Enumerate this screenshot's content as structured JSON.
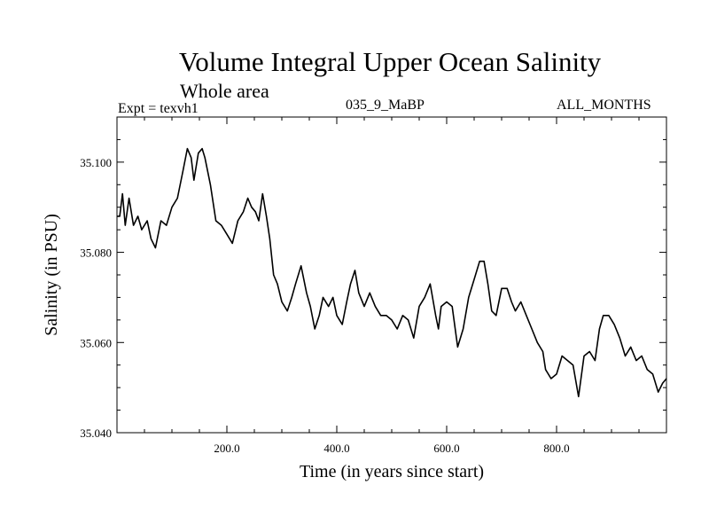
{
  "chart_data": {
    "type": "line",
    "title": "Volume Integral Upper Ocean Salinity",
    "subtitle": "Whole area",
    "expt_label": "Expt = texvh1",
    "run_label": "035_9_MaBP",
    "months_label": "ALL_MONTHS",
    "xlabel": "Time (in years since start)",
    "ylabel": "Salinity (in PSU)",
    "xlim": [
      0,
      1000
    ],
    "ylim": [
      35.04,
      35.11
    ],
    "x_ticks": [
      200,
      400,
      600,
      800
    ],
    "x_tick_labels": [
      "200.0",
      "400.0",
      "600.0",
      "800.0"
    ],
    "y_ticks": [
      35.04,
      35.06,
      35.08,
      35.1
    ],
    "y_tick_labels": [
      "35.040",
      "35.060",
      "35.080",
      "35.100"
    ],
    "series": [
      {
        "name": "salinity",
        "x": [
          0,
          5,
          10,
          15,
          22,
          30,
          38,
          45,
          55,
          62,
          70,
          80,
          90,
          100,
          110,
          120,
          128,
          135,
          140,
          148,
          155,
          160,
          170,
          180,
          190,
          200,
          210,
          220,
          230,
          238,
          245,
          252,
          258,
          265,
          272,
          278,
          285,
          292,
          300,
          310,
          318,
          325,
          335,
          345,
          352,
          360,
          368,
          375,
          385,
          393,
          400,
          410,
          418,
          425,
          433,
          440,
          450,
          460,
          470,
          480,
          490,
          500,
          510,
          520,
          530,
          540,
          550,
          560,
          570,
          580,
          585,
          590,
          600,
          610,
          620,
          630,
          640,
          650,
          660,
          668,
          675,
          682,
          690,
          700,
          710,
          718,
          725,
          735,
          745,
          755,
          765,
          775,
          780,
          790,
          800,
          810,
          820,
          830,
          840,
          850,
          860,
          870,
          878,
          885,
          895,
          905,
          915,
          925,
          935,
          945,
          955,
          965,
          975,
          985,
          993,
          1000
        ],
        "y": [
          35.088,
          35.088,
          35.093,
          35.086,
          35.092,
          35.086,
          35.088,
          35.085,
          35.087,
          35.083,
          35.081,
          35.087,
          35.086,
          35.09,
          35.092,
          35.098,
          35.103,
          35.101,
          35.096,
          35.102,
          35.103,
          35.101,
          35.095,
          35.087,
          35.086,
          35.084,
          35.082,
          35.087,
          35.089,
          35.092,
          35.09,
          35.089,
          35.087,
          35.093,
          35.088,
          35.083,
          35.075,
          35.073,
          35.069,
          35.067,
          35.07,
          35.073,
          35.077,
          35.071,
          35.068,
          35.063,
          35.066,
          35.07,
          35.068,
          35.07,
          35.066,
          35.064,
          35.069,
          35.073,
          35.076,
          35.071,
          35.068,
          35.071,
          35.068,
          35.066,
          35.066,
          35.065,
          35.063,
          35.066,
          35.065,
          35.061,
          35.068,
          35.07,
          35.073,
          35.066,
          35.063,
          35.068,
          35.069,
          35.068,
          35.059,
          35.063,
          35.07,
          35.074,
          35.078,
          35.078,
          35.073,
          35.067,
          35.066,
          35.072,
          35.072,
          35.069,
          35.067,
          35.069,
          35.066,
          35.063,
          35.06,
          35.058,
          35.054,
          35.052,
          35.053,
          35.057,
          35.056,
          35.055,
          35.048,
          35.057,
          35.058,
          35.056,
          35.063,
          35.066,
          35.066,
          35.064,
          35.061,
          35.057,
          35.059,
          35.056,
          35.057,
          35.054,
          35.053,
          35.049,
          35.051,
          35.052
        ]
      }
    ]
  }
}
